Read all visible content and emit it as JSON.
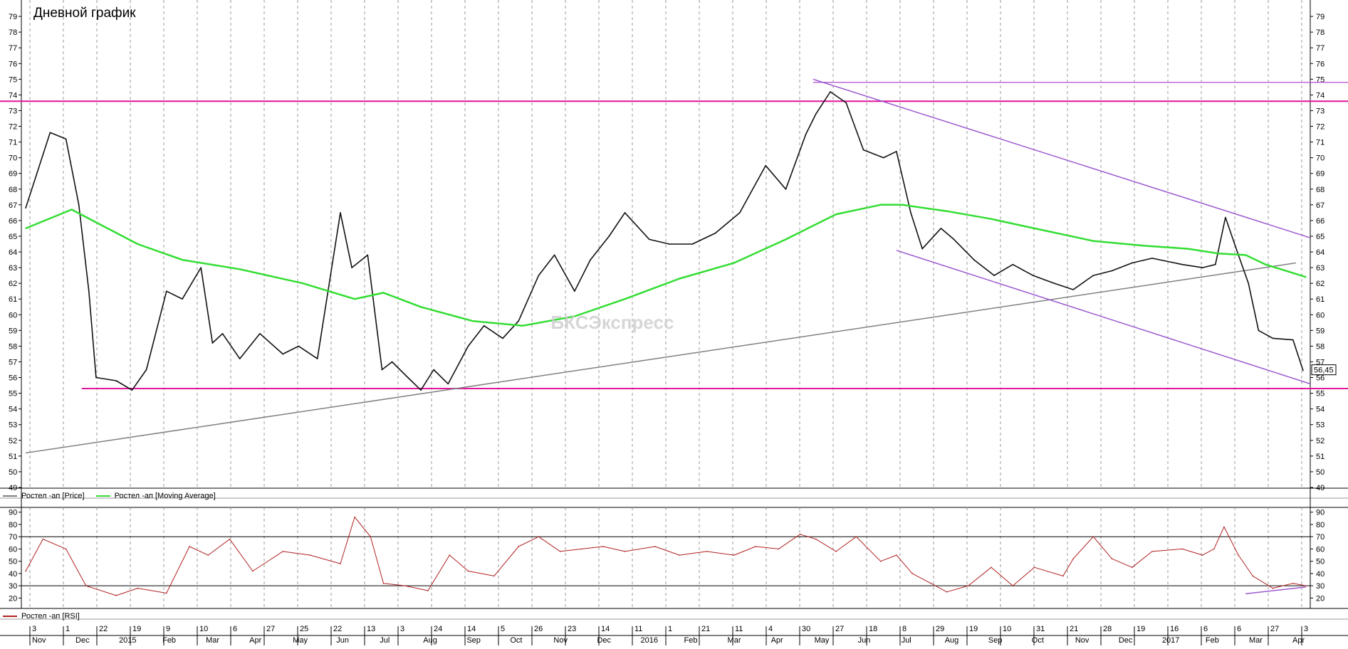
{
  "chart_data": [
    {
      "type": "line",
      "title": "Дневной график",
      "watermark": "БКСЭкспресс",
      "ylim": [
        49,
        80
      ],
      "y_ticks": [
        49,
        50,
        51,
        52,
        53,
        54,
        55,
        56,
        57,
        58,
        59,
        60,
        61,
        62,
        63,
        64,
        65,
        66,
        67,
        68,
        69,
        70,
        71,
        72,
        73,
        74,
        75,
        76,
        77,
        78,
        79
      ],
      "last_price_label": "56,45",
      "series": [
        {
          "name": "Ростел -ап [Price]",
          "color": "#808080",
          "x": [
            "2014-11-03",
            "2014-11-20",
            "2014-12-01",
            "2014-12-10",
            "2014-12-17",
            "2014-12-22",
            "2015-01-05",
            "2015-01-16",
            "2015-01-26",
            "2015-02-09",
            "2015-02-20",
            "2015-03-05",
            "2015-03-13",
            "2015-03-20",
            "2015-04-01",
            "2015-04-15",
            "2015-05-01",
            "2015-05-12",
            "2015-05-25",
            "2015-06-10",
            "2015-06-18",
            "2015-06-29",
            "2015-07-09",
            "2015-07-16",
            "2015-07-27",
            "2015-08-05",
            "2015-08-14",
            "2015-08-24",
            "2015-09-07",
            "2015-09-18",
            "2015-10-01",
            "2015-10-12",
            "2015-10-26",
            "2015-11-06",
            "2015-11-20",
            "2015-12-01",
            "2015-12-14",
            "2015-12-25",
            "2016-01-11",
            "2016-01-25",
            "2016-02-10",
            "2016-02-26",
            "2016-03-14",
            "2016-04-01",
            "2016-04-15",
            "2016-04-29",
            "2016-05-06",
            "2016-05-16",
            "2016-05-27",
            "2016-06-08",
            "2016-06-22",
            "2016-07-01",
            "2016-07-11",
            "2016-07-19",
            "2016-08-01",
            "2016-08-10",
            "2016-08-24",
            "2016-09-07",
            "2016-09-20",
            "2016-10-04",
            "2016-10-19",
            "2016-11-01",
            "2016-11-15",
            "2016-11-28",
            "2016-12-12",
            "2016-12-26",
            "2017-01-16",
            "2017-01-30",
            "2017-02-08",
            "2017-02-15",
            "2017-02-24",
            "2017-03-03",
            "2017-03-10",
            "2017-03-20",
            "2017-04-03",
            "2017-04-10"
          ],
          "values": [
            66.8,
            71.6,
            71.2,
            67.0,
            61.5,
            56.0,
            55.8,
            55.2,
            56.5,
            61.5,
            61.0,
            63.0,
            58.2,
            58.8,
            57.2,
            58.8,
            57.5,
            58.0,
            57.2,
            66.5,
            63.0,
            63.8,
            56.5,
            57.0,
            56.0,
            55.2,
            56.5,
            55.6,
            58.0,
            59.3,
            58.5,
            59.6,
            62.5,
            63.8,
            61.5,
            63.5,
            65.0,
            66.5,
            64.8,
            64.5,
            64.5,
            65.2,
            66.5,
            69.5,
            68.0,
            71.5,
            72.8,
            74.2,
            73.5,
            70.5,
            70.0,
            70.4,
            66.5,
            64.2,
            65.5,
            64.8,
            63.5,
            62.5,
            63.2,
            62.5,
            62.0,
            61.6,
            62.5,
            62.8,
            63.3,
            63.6,
            63.2,
            63.0,
            63.2,
            66.2,
            63.8,
            62.0,
            59.0,
            58.5,
            58.4,
            56.45
          ]
        },
        {
          "name": "Ростел -ап [Moving Average]",
          "color": "#33dd33",
          "x": [
            "2014-11-03",
            "2014-12-05",
            "2015-01-20",
            "2015-02-20",
            "2015-04-01",
            "2015-05-15",
            "2015-06-20",
            "2015-07-10",
            "2015-08-05",
            "2015-09-10",
            "2015-10-15",
            "2015-11-20",
            "2015-12-25",
            "2016-02-01",
            "2016-03-10",
            "2016-04-15",
            "2016-05-20",
            "2016-06-20",
            "2016-07-05",
            "2016-08-05",
            "2016-09-05",
            "2016-10-05",
            "2016-11-15",
            "2016-12-20",
            "2017-01-20",
            "2017-02-10",
            "2017-03-01",
            "2017-03-15",
            "2017-04-12"
          ],
          "values": [
            65.5,
            66.7,
            64.5,
            63.5,
            62.9,
            62.0,
            61.0,
            61.4,
            60.5,
            59.6,
            59.3,
            59.9,
            61.0,
            62.3,
            63.3,
            64.8,
            66.4,
            67.0,
            67.0,
            66.6,
            66.1,
            65.5,
            64.7,
            64.4,
            64.2,
            63.9,
            63.8,
            63.2,
            62.4
          ]
        }
      ],
      "annotations": [
        {
          "type": "hline",
          "y": 73.6,
          "color": "#e0179a",
          "label": ""
        },
        {
          "type": "hline",
          "y": 55.3,
          "color": "#e0179a",
          "label": ""
        },
        {
          "type": "hline",
          "y": 74.8,
          "color": "#b04fd0",
          "label": ""
        },
        {
          "type": "trend",
          "x": [
            "2014-11-03",
            "2017-04-05"
          ],
          "y": [
            51.2,
            63.3
          ],
          "color": "#808080"
        },
        {
          "type": "trend",
          "x": [
            "2016-05-04",
            "2017-04-15"
          ],
          "y": [
            75.0,
            64.9
          ],
          "color": "#9b59d0"
        },
        {
          "type": "trend",
          "x": [
            "2016-07-01",
            "2017-04-15"
          ],
          "y": [
            64.1,
            55.6
          ],
          "color": "#9b59d0"
        }
      ]
    },
    {
      "type": "line",
      "title": "",
      "ylim": [
        15,
        91
      ],
      "y_ticks": [
        20,
        30,
        40,
        50,
        60,
        70,
        80,
        90
      ],
      "reference_lines": [
        70,
        30
      ],
      "series": [
        {
          "name": "Ростел -ап [RSI]",
          "color": "#b02020",
          "x": [
            "2014-11-03",
            "2014-11-15",
            "2014-12-01",
            "2014-12-15",
            "2015-01-05",
            "2015-01-20",
            "2015-02-09",
            "2015-02-25",
            "2015-03-10",
            "2015-03-25",
            "2015-04-10",
            "2015-05-01",
            "2015-05-20",
            "2015-06-10",
            "2015-06-20",
            "2015-07-01",
            "2015-07-10",
            "2015-07-25",
            "2015-08-10",
            "2015-08-25",
            "2015-09-07",
            "2015-09-25",
            "2015-10-12",
            "2015-10-26",
            "2015-11-10",
            "2015-11-25",
            "2015-12-10",
            "2015-12-25",
            "2016-01-15",
            "2016-02-01",
            "2016-02-20",
            "2016-03-10",
            "2016-03-25",
            "2016-04-10",
            "2016-04-25",
            "2016-05-06",
            "2016-05-20",
            "2016-06-03",
            "2016-06-20",
            "2016-07-01",
            "2016-07-12",
            "2016-07-25",
            "2016-08-05",
            "2016-08-20",
            "2016-09-05",
            "2016-09-20",
            "2016-10-05",
            "2016-10-25",
            "2016-11-01",
            "2016-11-15",
            "2016-11-28",
            "2016-12-12",
            "2016-12-26",
            "2017-01-16",
            "2017-01-30",
            "2017-02-07",
            "2017-02-14",
            "2017-02-24",
            "2017-03-06",
            "2017-03-20",
            "2017-04-03",
            "2017-04-12"
          ],
          "values": [
            42,
            68,
            60,
            30,
            22,
            28,
            24,
            62,
            55,
            68,
            42,
            58,
            55,
            48,
            86,
            70,
            32,
            30,
            26,
            55,
            42,
            38,
            62,
            70,
            58,
            60,
            62,
            58,
            62,
            55,
            58,
            55,
            62,
            60,
            72,
            68,
            58,
            70,
            50,
            55,
            40,
            32,
            25,
            30,
            45,
            30,
            45,
            38,
            52,
            70,
            52,
            45,
            58,
            60,
            55,
            60,
            78,
            55,
            38,
            28,
            32,
            30
          ]
        }
      ],
      "annotations": [
        {
          "type": "trend",
          "x": [
            "2017-03-01",
            "2017-04-12"
          ],
          "y": [
            23.5,
            29.0
          ],
          "color": "#9b59d0"
        }
      ]
    }
  ],
  "x_axis": {
    "day_labels": [
      "3",
      "1",
      "22",
      "19",
      "9",
      "10",
      "6",
      "27",
      "25",
      "22",
      "13",
      "3",
      "24",
      "14",
      "5",
      "26",
      "23",
      "14",
      "11",
      "1",
      "21",
      "11",
      "4",
      "30",
      "27",
      "18",
      "8",
      "29",
      "19",
      "10",
      "31",
      "21",
      "28",
      "19",
      "16",
      "6",
      "6",
      "27",
      "3"
    ],
    "month_labels": [
      "Nov",
      "Dec",
      "2015",
      "Feb",
      "Mar",
      "Apr",
      "May",
      "Jun",
      "Jul",
      "Aug",
      "Sep",
      "Oct",
      "Nov",
      "Dec",
      "2016",
      "Feb",
      "Mar",
      "Apr",
      "May",
      "Jun",
      "Jul",
      "Aug",
      "Sep",
      "Oct",
      "Nov",
      "Dec",
      "2017",
      "Feb",
      "Mar",
      "Apr"
    ],
    "range": [
      "2014-10-31",
      "2017-04-15"
    ]
  }
}
